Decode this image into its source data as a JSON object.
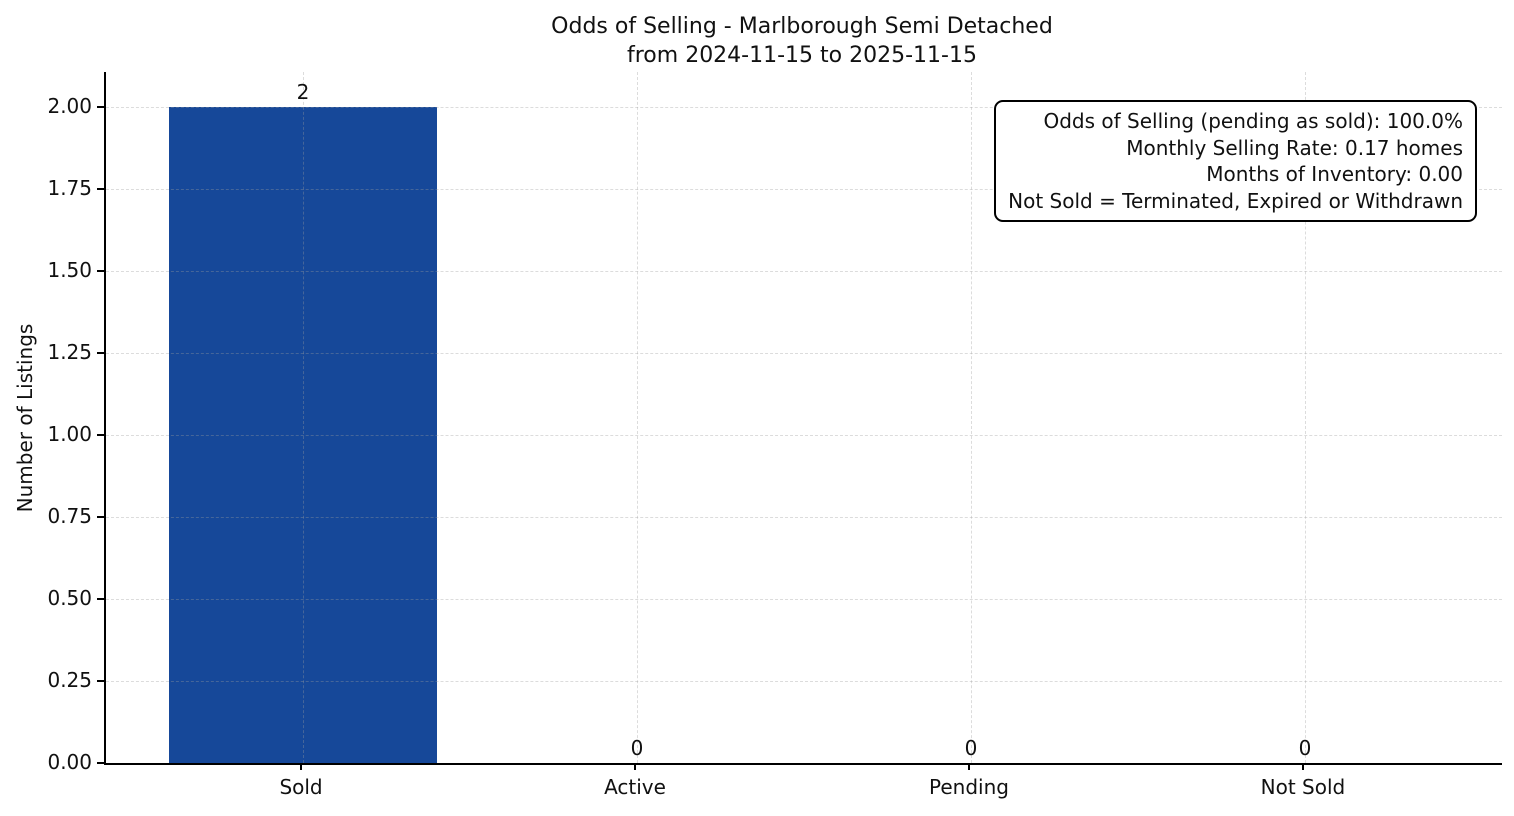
{
  "chart_data": {
    "type": "bar",
    "title": "Odds of Selling - Marlborough Semi Detached\nfrom 2024-11-15 to 2025-11-15",
    "title_lines": [
      "Odds of Selling - Marlborough Semi Detached",
      "from 2024-11-15 to 2025-11-15"
    ],
    "categories": [
      "Sold",
      "Active",
      "Pending",
      "Not Sold"
    ],
    "values": [
      2,
      0,
      0,
      0
    ],
    "bar_labels": [
      "2",
      "0",
      "0",
      "0"
    ],
    "xlabel": "",
    "ylabel": "Number of Listings",
    "ylim": [
      0,
      2.107
    ],
    "yticks": [
      "0.00",
      "0.25",
      "0.50",
      "0.75",
      "1.00",
      "1.25",
      "1.50",
      "1.75",
      "2.00"
    ],
    "grid": true,
    "grid_style": "dashed",
    "legend": "none",
    "bar_color": "#164899",
    "grid_color": "#9e9e9e",
    "bar_width_ratio": 0.8,
    "annotation": {
      "lines": [
        "Odds of Selling (pending as sold): 100.0%",
        "Monthly Selling Rate: 0.17 homes",
        "Months of Inventory: 0.00",
        "Not Sold = Terminated, Expired or Withdrawn"
      ]
    }
  }
}
